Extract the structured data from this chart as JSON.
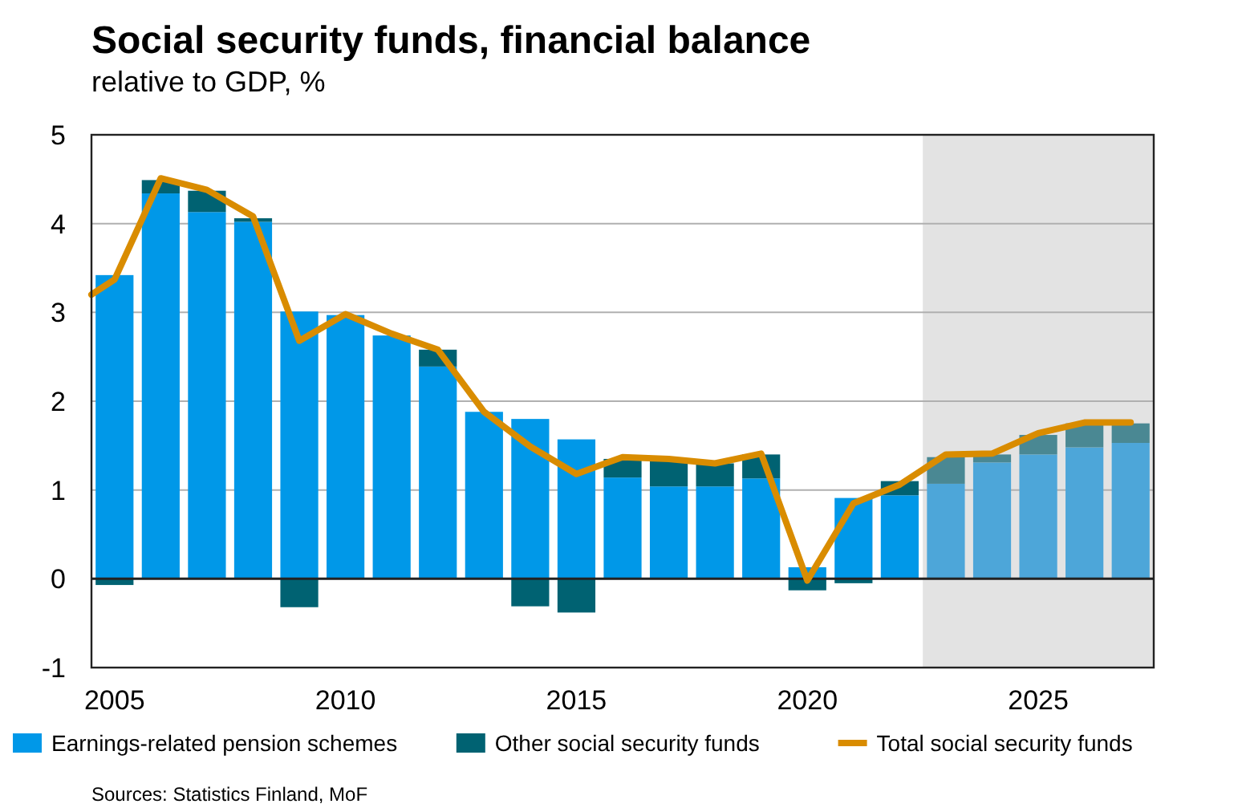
{
  "chart_data": {
    "type": "bar",
    "title": "Social security funds, financial balance",
    "subtitle": "relative to GDP, %",
    "x": [
      2005,
      2006,
      2007,
      2008,
      2009,
      2010,
      2011,
      2012,
      2013,
      2014,
      2015,
      2016,
      2017,
      2018,
      2019,
      2020,
      2021,
      2022,
      2023,
      2024,
      2025,
      2026,
      2027
    ],
    "xlim": [
      2004.5,
      2027.5
    ],
    "xticks": [
      2005,
      2010,
      2015,
      2020,
      2025
    ],
    "ylim": [
      -1,
      5
    ],
    "yticks": [
      -1,
      0,
      1,
      2,
      3,
      4,
      5
    ],
    "grid": "y",
    "stacked": true,
    "legend": "bottom",
    "series": [
      {
        "name": "Earnings-related pension schemes",
        "color": "#0098e8",
        "colors": [
          "#0098e8",
          "#0098e8",
          "#0098e8",
          "#0098e8",
          "#0098e8",
          "#0098e8",
          "#0098e8",
          "#0098e8",
          "#0098e8",
          "#0098e8",
          "#0098e8",
          "#0098e8",
          "#0098e8",
          "#0098e8",
          "#0098e8",
          "#0098e8",
          "#0098e8",
          "#0098e8",
          "#4da6d9",
          "#4da6d9",
          "#4da6d9",
          "#4da6d9",
          "#4da6d9"
        ],
        "values": [
          3.42,
          4.34,
          4.13,
          4.02,
          3.01,
          2.97,
          2.74,
          2.39,
          1.88,
          1.8,
          1.57,
          1.14,
          1.04,
          1.04,
          1.13,
          0.13,
          0.91,
          0.94,
          1.07,
          1.31,
          1.4,
          1.48,
          1.53
        ]
      },
      {
        "name": "Other social security funds",
        "color": "#006272",
        "colors": [
          "#006272",
          "#006272",
          "#006272",
          "#006272",
          "#006272",
          "#006272",
          "#006272",
          "#006272",
          "#006272",
          "#006272",
          "#006272",
          "#006272",
          "#006272",
          "#006272",
          "#006272",
          "#006272",
          "#006272",
          "#006272",
          "#4a8893",
          "#4a8893",
          "#4a8893",
          "#4a8893",
          "#4a8893"
        ],
        "values": [
          -0.07,
          0.15,
          0.24,
          0.04,
          -0.32,
          0,
          0,
          0.19,
          0,
          -0.31,
          -0.38,
          0.21,
          0.29,
          0.26,
          0.27,
          -0.13,
          -0.05,
          0.16,
          0.3,
          0.09,
          0.22,
          0.27,
          0.22
        ]
      },
      {
        "name": "Total social security funds",
        "type": "line",
        "color": "#d98c00",
        "x": [
          2004.5,
          2005,
          2006,
          2007,
          2008,
          2009,
          2010,
          2011,
          2012,
          2013,
          2014,
          2015,
          2016,
          2017,
          2018,
          2019,
          2020,
          2021,
          2022,
          2023,
          2024,
          2025,
          2026,
          2027
        ],
        "values": [
          3.2,
          3.37,
          4.51,
          4.38,
          4.08,
          2.68,
          2.98,
          2.76,
          2.58,
          1.88,
          1.49,
          1.18,
          1.37,
          1.35,
          1.3,
          1.41,
          -0.02,
          0.85,
          1.06,
          1.4,
          1.41,
          1.64,
          1.76,
          1.76
        ]
      }
    ],
    "bands": [
      {
        "axis": "x",
        "from": 2022.5,
        "to": 2027.5,
        "color": "#e3e3e3"
      }
    ],
    "annotations": [
      "Sources: Statistics Finland, MoF"
    ]
  }
}
